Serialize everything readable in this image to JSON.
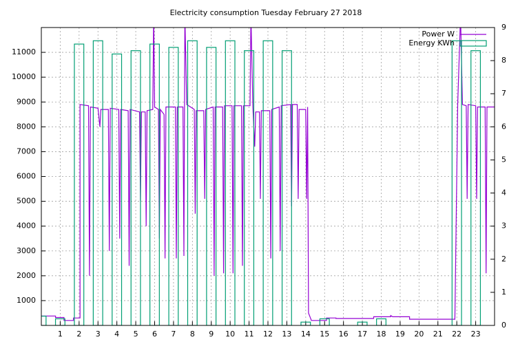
{
  "chart_data": {
    "type": "line",
    "title": "Electricity consumption Tuesday February 27 2018",
    "xlim": [
      0,
      24
    ],
    "xticks": [
      1,
      2,
      3,
      4,
      5,
      6,
      7,
      8,
      9,
      10,
      11,
      12,
      13,
      14,
      15,
      16,
      17,
      18,
      19,
      20,
      21,
      22,
      23
    ],
    "ylim": [
      0,
      12000
    ],
    "yticks": [
      1000,
      2000,
      3000,
      4000,
      5000,
      6000,
      7000,
      8000,
      9000,
      10000,
      11000
    ],
    "y2lim": [
      0,
      9
    ],
    "y2ticks": [
      0,
      1,
      2,
      3,
      4,
      5,
      6,
      7,
      8,
      9
    ],
    "grid": true,
    "legend": "top-right",
    "series": [
      {
        "name": "Power W",
        "color": "#9400d3",
        "type": "line",
        "x": [
          0,
          0.75,
          0.75,
          1.2,
          1.2,
          1.7,
          1.7,
          2.05,
          2.05,
          2.5,
          2.55,
          2.6,
          3,
          3.1,
          3.15,
          3.55,
          3.6,
          3.65,
          4.1,
          4.15,
          4.2,
          4.6,
          4.65,
          4.7,
          5.2,
          5.25,
          5.3,
          5.5,
          5.55,
          5.6,
          5.9,
          5.95,
          6.0,
          6.2,
          6.25,
          6.3,
          6.5,
          6.55,
          6.6,
          7.1,
          7.15,
          7.2,
          7.5,
          7.55,
          7.6,
          7.7,
          8.1,
          8.15,
          8.2,
          8.6,
          8.65,
          8.7,
          9.1,
          9.15,
          9.2,
          9.6,
          9.65,
          9.7,
          10.1,
          10.15,
          10.2,
          10.6,
          10.65,
          10.7,
          11.05,
          11.1,
          11.2,
          11.3,
          11.35,
          11.55,
          11.6,
          11.65,
          12.1,
          12.15,
          12.2,
          12.6,
          12.65,
          12.7,
          13.2,
          13.25,
          13.3,
          13.55,
          13.6,
          13.65,
          14,
          14.05,
          14.1,
          14.15,
          14.3,
          15.1,
          15.1,
          15.6,
          15.6,
          17.6,
          17.6,
          18.5,
          18.5,
          18.6,
          19.5,
          19.5,
          21.9,
          22.05,
          22.2,
          22.3,
          22.5,
          22.55,
          22.6,
          23,
          23.05,
          23.1,
          23.5,
          23.55,
          23.6,
          24
        ],
        "values": [
          380,
          380,
          320,
          320,
          200,
          200,
          300,
          300,
          8900,
          8850,
          2000,
          8800,
          8750,
          8000,
          8700,
          8700,
          3000,
          8750,
          8700,
          3500,
          8700,
          8650,
          2400,
          8700,
          8600,
          5000,
          8600,
          8600,
          4000,
          8650,
          8700,
          12500,
          8800,
          8700,
          3500,
          8700,
          8500,
          2700,
          8800,
          8800,
          2700,
          8800,
          8800,
          2800,
          12500,
          8900,
          8700,
          4500,
          8650,
          8650,
          5100,
          8700,
          8800,
          2000,
          8800,
          8800,
          2100,
          8850,
          8850,
          2100,
          8850,
          8850,
          2400,
          8850,
          8850,
          12500,
          8800,
          7200,
          8600,
          8600,
          5100,
          8650,
          8650,
          2700,
          8700,
          8800,
          3000,
          8850,
          8900,
          4800,
          8900,
          8900,
          5100,
          8700,
          8700,
          5100,
          8800,
          500,
          200,
          200,
          300,
          300,
          280,
          280,
          350,
          350,
          400,
          350,
          350,
          250,
          250,
          8900,
          12500,
          8900,
          8850,
          5100,
          8900,
          8850,
          5100,
          8800,
          8800,
          2100,
          8800,
          8800
        ]
      },
      {
        "name": "Energy KWh",
        "color": "#009e73",
        "type": "bar",
        "axis": "y2",
        "x": [
          0,
          1,
          2,
          3,
          4,
          5,
          6,
          7,
          8,
          9,
          10,
          11,
          12,
          13,
          14,
          15,
          17,
          18,
          22,
          23
        ],
        "values": [
          0.28,
          0.2,
          8.5,
          8.6,
          8.2,
          8.3,
          8.5,
          8.4,
          8.6,
          8.4,
          8.6,
          8.3,
          8.6,
          8.3,
          0.1,
          0.2,
          0.1,
          0.2,
          8.6,
          8.3
        ]
      }
    ]
  }
}
